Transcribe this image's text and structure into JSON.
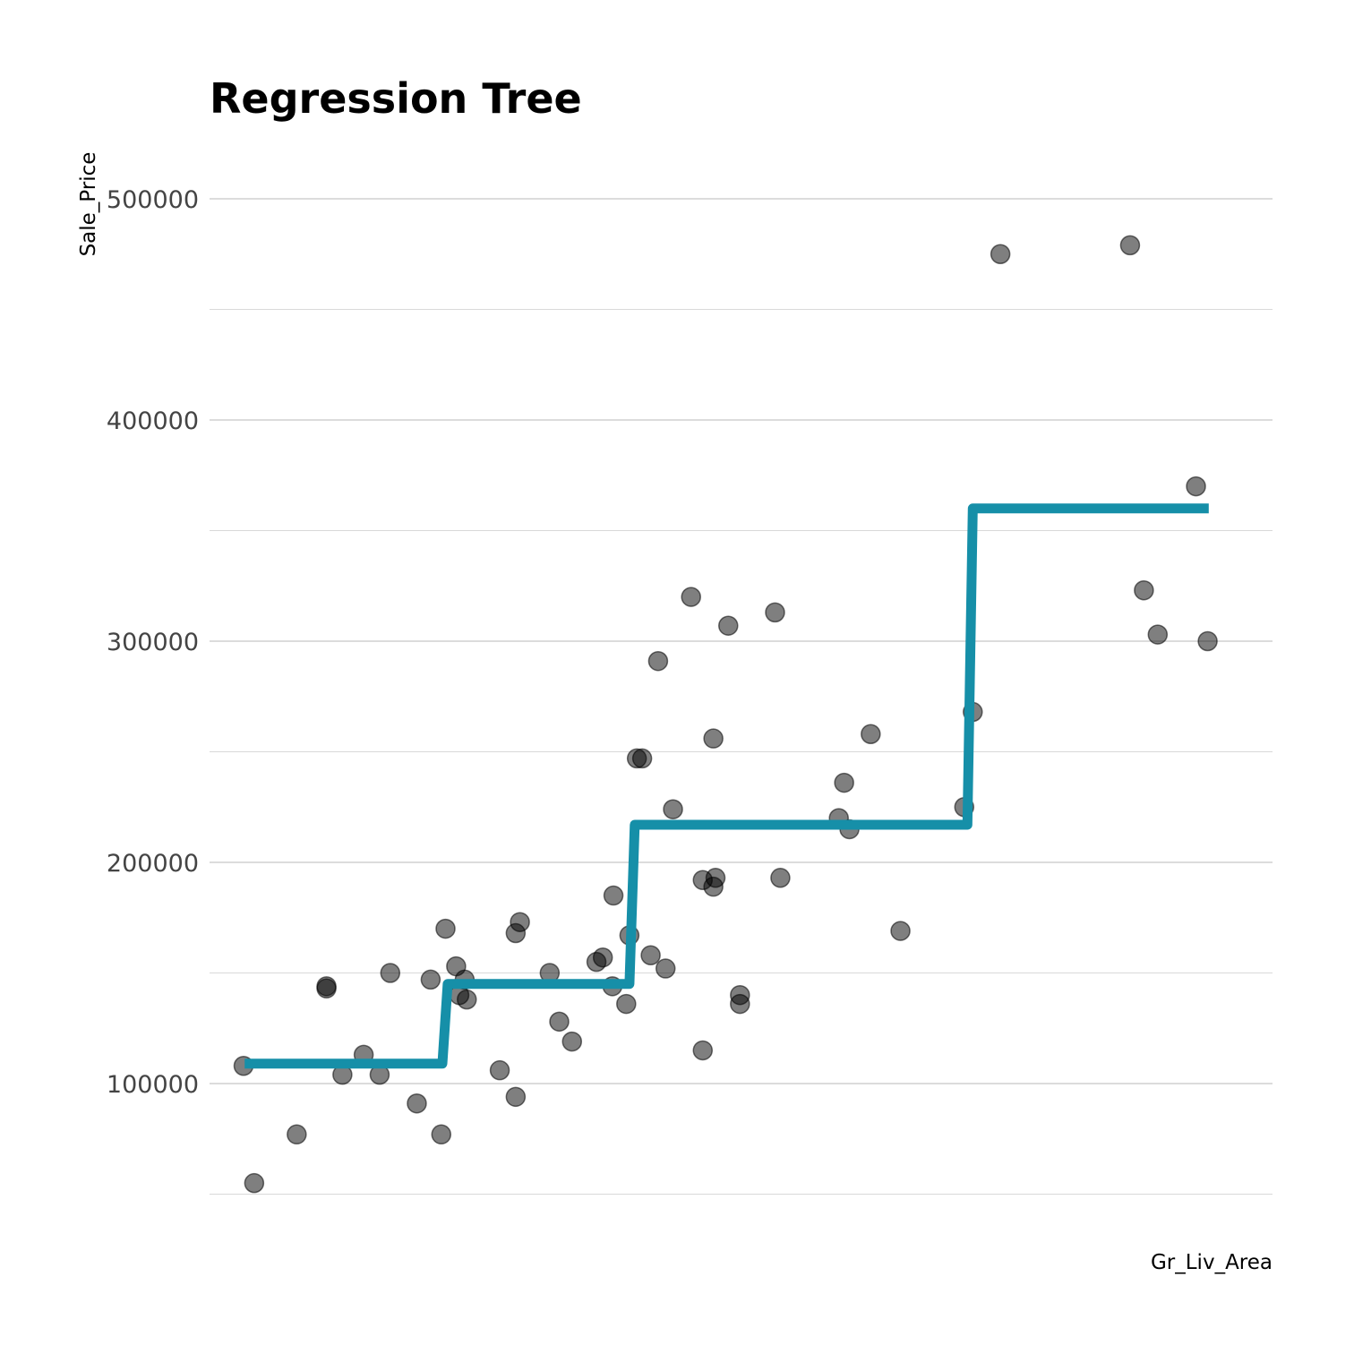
{
  "chart_data": {
    "type": "scatter",
    "title": "Regression Tree",
    "xlabel": "Gr_Liv_Area",
    "ylabel": "Sale_Price",
    "x_tick_labels_shown": false,
    "xlim": [
      0,
      100
    ],
    "ylim": [
      50000,
      520000
    ],
    "y_ticks": [
      100000,
      200000,
      300000,
      400000,
      500000
    ],
    "y_minor_ticks": [
      50000,
      150000,
      250000,
      350000,
      450000
    ],
    "grid": "horizontal",
    "point_color": "#000000",
    "point_opacity": 0.5,
    "line_color": "#168fa8",
    "points": [
      {
        "x": 3.2,
        "y": 108000
      },
      {
        "x": 4.2,
        "y": 55000
      },
      {
        "x": 8.2,
        "y": 77000
      },
      {
        "x": 11.0,
        "y": 143000
      },
      {
        "x": 11.0,
        "y": 144000
      },
      {
        "x": 12.5,
        "y": 104000
      },
      {
        "x": 14.5,
        "y": 113000
      },
      {
        "x": 16.0,
        "y": 104000
      },
      {
        "x": 17.0,
        "y": 150000
      },
      {
        "x": 19.5,
        "y": 91000
      },
      {
        "x": 20.8,
        "y": 147000
      },
      {
        "x": 21.8,
        "y": 77000
      },
      {
        "x": 22.2,
        "y": 170000
      },
      {
        "x": 23.2,
        "y": 153000
      },
      {
        "x": 23.5,
        "y": 140000
      },
      {
        "x": 24.0,
        "y": 147000
      },
      {
        "x": 24.2,
        "y": 138000
      },
      {
        "x": 27.3,
        "y": 106000
      },
      {
        "x": 28.8,
        "y": 168000
      },
      {
        "x": 28.8,
        "y": 94000
      },
      {
        "x": 29.2,
        "y": 173000
      },
      {
        "x": 32.0,
        "y": 150000
      },
      {
        "x": 32.9,
        "y": 128000
      },
      {
        "x": 34.1,
        "y": 119000
      },
      {
        "x": 36.4,
        "y": 155000
      },
      {
        "x": 37.0,
        "y": 157000
      },
      {
        "x": 37.9,
        "y": 144000
      },
      {
        "x": 38.0,
        "y": 185000
      },
      {
        "x": 39.2,
        "y": 136000
      },
      {
        "x": 39.5,
        "y": 167000
      },
      {
        "x": 40.2,
        "y": 247000
      },
      {
        "x": 40.7,
        "y": 247000
      },
      {
        "x": 41.5,
        "y": 158000
      },
      {
        "x": 42.2,
        "y": 291000
      },
      {
        "x": 42.9,
        "y": 152000
      },
      {
        "x": 43.6,
        "y": 224000
      },
      {
        "x": 45.3,
        "y": 320000
      },
      {
        "x": 46.4,
        "y": 192000
      },
      {
        "x": 46.4,
        "y": 115000
      },
      {
        "x": 47.4,
        "y": 256000
      },
      {
        "x": 47.4,
        "y": 189000
      },
      {
        "x": 47.6,
        "y": 193000
      },
      {
        "x": 48.8,
        "y": 307000
      },
      {
        "x": 49.9,
        "y": 136000
      },
      {
        "x": 49.9,
        "y": 140000
      },
      {
        "x": 53.2,
        "y": 313000
      },
      {
        "x": 53.7,
        "y": 193000
      },
      {
        "x": 59.2,
        "y": 220000
      },
      {
        "x": 59.7,
        "y": 236000
      },
      {
        "x": 60.2,
        "y": 215000
      },
      {
        "x": 62.2,
        "y": 258000
      },
      {
        "x": 65.0,
        "y": 169000
      },
      {
        "x": 71.0,
        "y": 225000
      },
      {
        "x": 71.8,
        "y": 268000
      },
      {
        "x": 74.4,
        "y": 475000
      },
      {
        "x": 86.6,
        "y": 479000
      },
      {
        "x": 87.9,
        "y": 323000
      },
      {
        "x": 89.2,
        "y": 303000
      },
      {
        "x": 92.8,
        "y": 370000
      },
      {
        "x": 93.9,
        "y": 300000
      }
    ],
    "step_line": [
      {
        "x": 3.3,
        "y": 109000
      },
      {
        "x": 21.9,
        "y": 109000
      },
      {
        "x": 22.4,
        "y": 145000
      },
      {
        "x": 39.5,
        "y": 145000
      },
      {
        "x": 40.0,
        "y": 217000
      },
      {
        "x": 71.3,
        "y": 217000
      },
      {
        "x": 71.8,
        "y": 360000
      },
      {
        "x": 94.0,
        "y": 360000
      }
    ]
  }
}
